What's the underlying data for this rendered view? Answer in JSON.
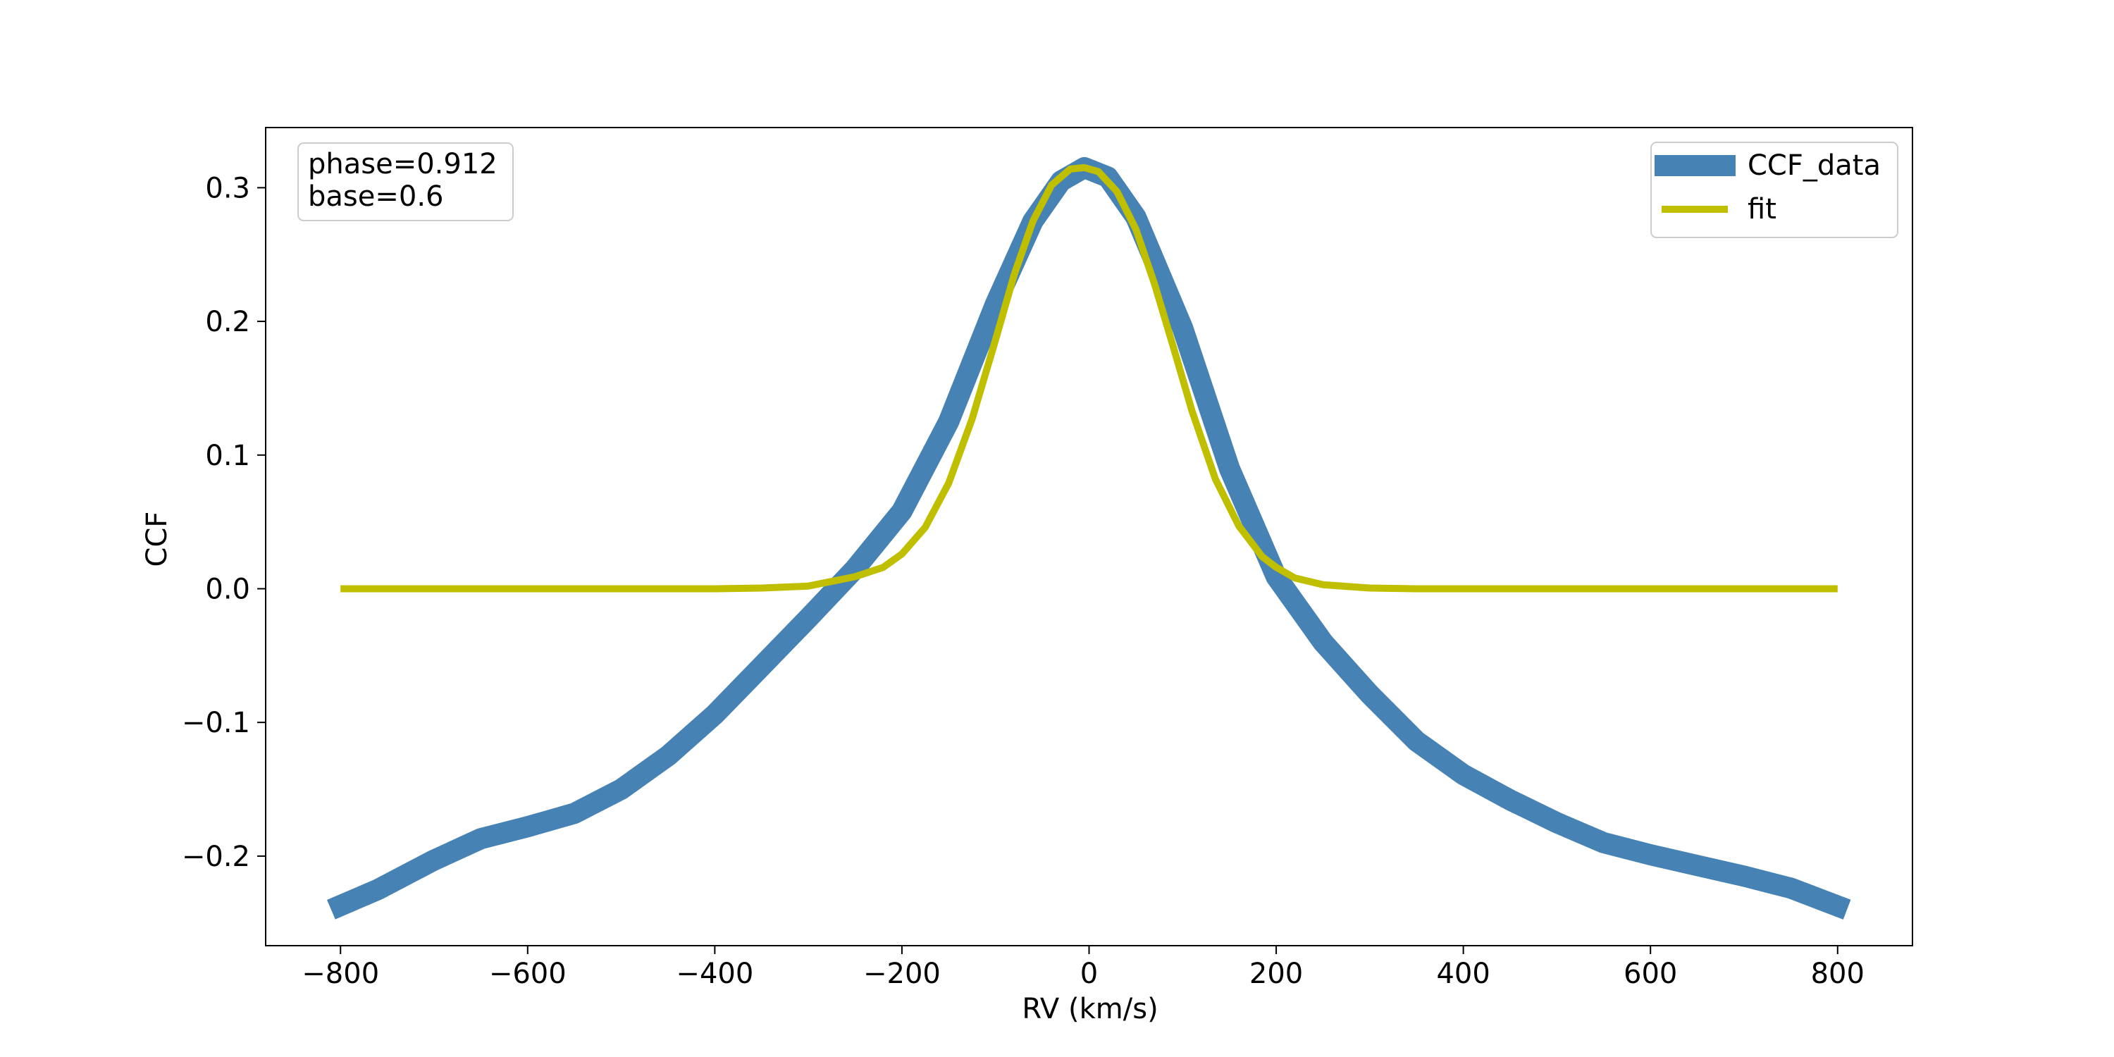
{
  "chart_data": {
    "type": "line",
    "xlabel": "RV (km/s)",
    "ylabel": "CCF",
    "xlim": [
      -880,
      880
    ],
    "ylim": [
      -0.267,
      0.345
    ],
    "xticks": [
      -800,
      -600,
      -400,
      -200,
      0,
      200,
      400,
      600,
      800
    ],
    "xtick_labels": [
      "−800",
      "−600",
      "−400",
      "−200",
      "0",
      "200",
      "400",
      "600",
      "800"
    ],
    "yticks": [
      -0.2,
      -0.1,
      0.0,
      0.1,
      0.2,
      0.3
    ],
    "ytick_labels": [
      "−0.2",
      "−0.1",
      "0.0",
      "0.1",
      "0.2",
      "0.3"
    ],
    "grid": false,
    "legend": {
      "placement": "top-right",
      "entries": [
        "CCF_data",
        "fit"
      ]
    },
    "annotation": {
      "placement": "top-left",
      "lines": [
        "phase=0.912",
        "base=0.6"
      ]
    },
    "series": [
      {
        "name": "CCF_data",
        "color": "#4682b4",
        "x": [
          -810,
          -760,
          -700,
          -650,
          -600,
          -550,
          -500,
          -450,
          -400,
          -350,
          -300,
          -250,
          -200,
          -150,
          -100,
          -60,
          -30,
          -5,
          20,
          50,
          100,
          150,
          200,
          250,
          300,
          350,
          400,
          450,
          500,
          550,
          600,
          650,
          700,
          750,
          810
        ],
        "y": [
          -0.24,
          -0.225,
          -0.203,
          -0.187,
          -0.178,
          -0.168,
          -0.15,
          -0.125,
          -0.094,
          -0.058,
          -0.022,
          0.015,
          0.058,
          0.125,
          0.213,
          0.275,
          0.305,
          0.315,
          0.308,
          0.278,
          0.195,
          0.09,
          0.009,
          -0.04,
          -0.079,
          -0.114,
          -0.139,
          -0.158,
          -0.175,
          -0.19,
          -0.199,
          -0.207,
          -0.215,
          -0.224,
          -0.24
        ]
      },
      {
        "name": "fit",
        "color": "#bfbf00",
        "x": [
          -800,
          -600,
          -400,
          -350,
          -300,
          -250,
          -220,
          -200,
          -175,
          -150,
          -125,
          -100,
          -80,
          -60,
          -40,
          -20,
          -5,
          10,
          30,
          50,
          70,
          90,
          110,
          135,
          160,
          185,
          200,
          220,
          250,
          300,
          350,
          400,
          600,
          800
        ],
        "y": [
          0.0,
          0.0,
          0.0,
          0.0005,
          0.002,
          0.009,
          0.016,
          0.026,
          0.046,
          0.079,
          0.127,
          0.186,
          0.235,
          0.275,
          0.302,
          0.314,
          0.315,
          0.312,
          0.297,
          0.269,
          0.228,
          0.181,
          0.133,
          0.082,
          0.047,
          0.024,
          0.016,
          0.008,
          0.003,
          0.0005,
          0.0,
          0.0,
          0.0,
          0.0
        ]
      }
    ]
  }
}
